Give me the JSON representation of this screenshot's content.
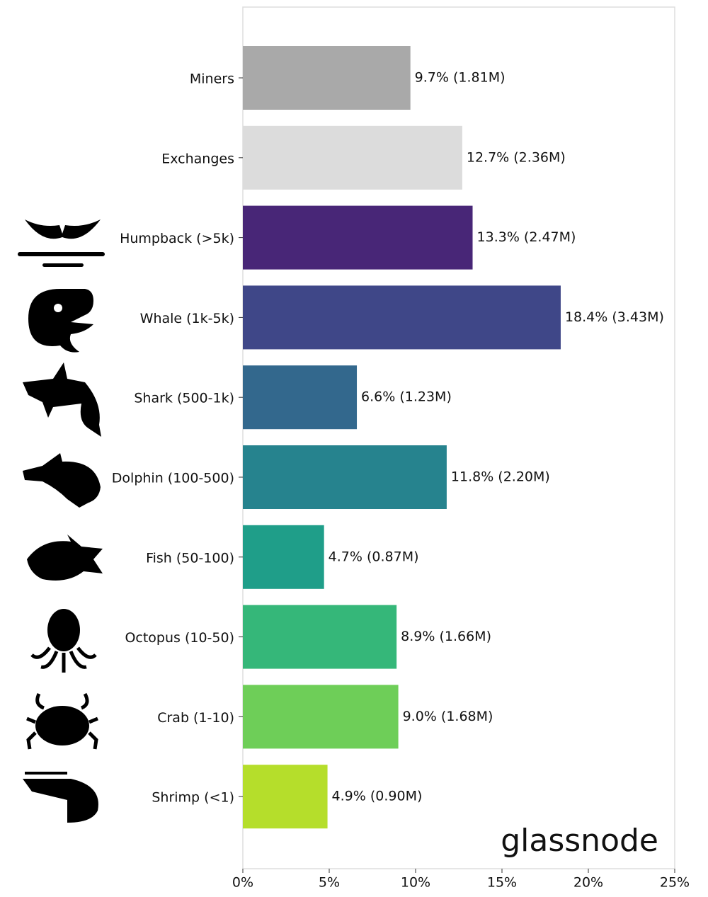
{
  "chart_data": {
    "type": "bar",
    "orientation": "horizontal",
    "categories": [
      "Miners",
      "Exchanges",
      "Humpback (>5k)",
      "Whale (1k-5k)",
      "Shark (500-1k)",
      "Dolphin (100-500)",
      "Fish (50-100)",
      "Octopus (10-50)",
      "Crab (1-10)",
      "Shrimp (<1)"
    ],
    "values": [
      9.7,
      12.7,
      13.3,
      18.4,
      6.6,
      11.8,
      4.7,
      8.9,
      9.0,
      4.9
    ],
    "value_labels": [
      "9.7% (1.81M)",
      "12.7% (2.36M)",
      "13.3% (2.47M)",
      "18.4% (3.43M)",
      "6.6% (1.23M)",
      "11.8% (2.20M)",
      "4.7% (0.87M)",
      "8.9% (1.66M)",
      "9.0% (1.68M)",
      "4.9% (0.90M)"
    ],
    "colors": [
      "#a9a9a9",
      "#dcdcdc",
      "#482677",
      "#3f4788",
      "#33688d",
      "#26838e",
      "#1f9e89",
      "#35b779",
      "#6ece58",
      "#b5de2b"
    ],
    "xlim": [
      0,
      25
    ],
    "xticks": [
      {
        "value": 0,
        "label": "0%"
      },
      {
        "value": 5,
        "label": "5%"
      },
      {
        "value": 10,
        "label": "10%"
      },
      {
        "value": 15,
        "label": "15%"
      },
      {
        "value": 20,
        "label": "20%"
      },
      {
        "value": 25,
        "label": "25%"
      }
    ],
    "watermark": "glassnode"
  }
}
